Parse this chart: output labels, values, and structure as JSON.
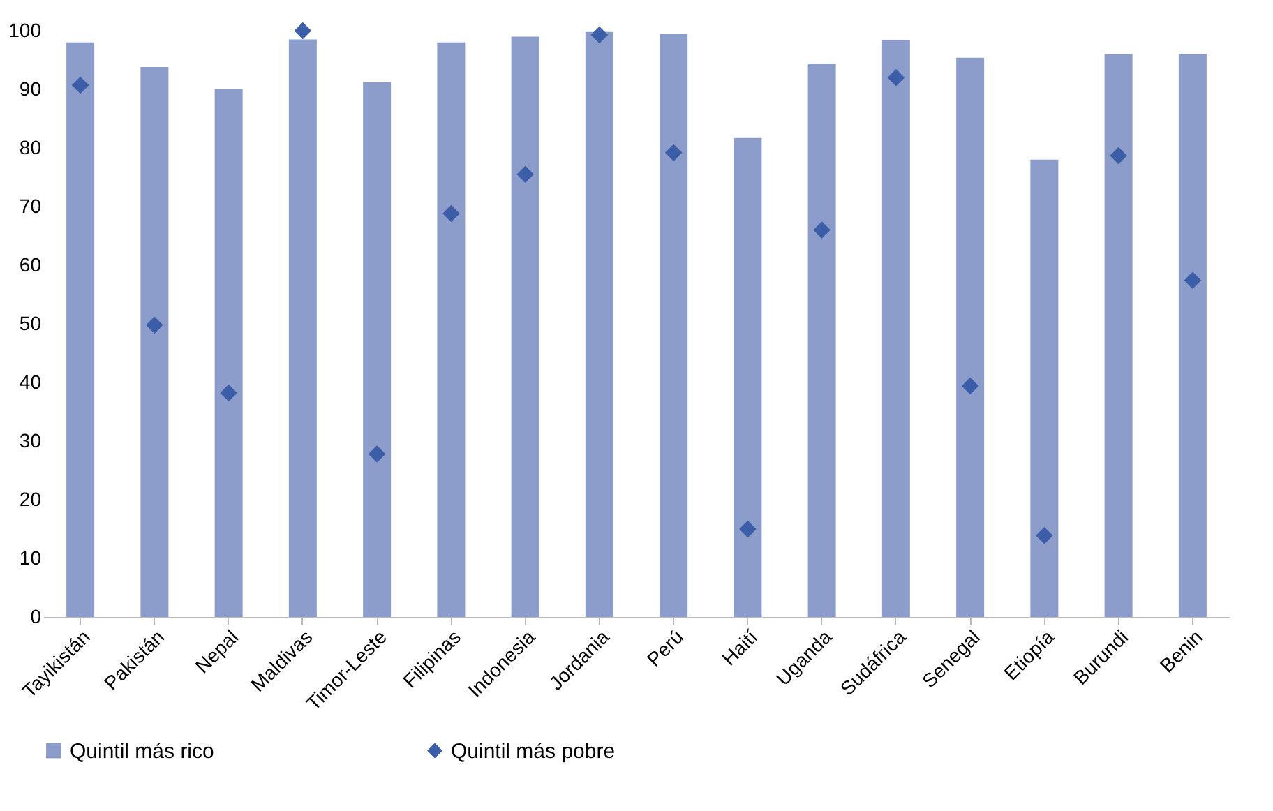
{
  "chart_data": {
    "type": "bar",
    "categories": [
      "Tayikistán",
      "Pakistán",
      "Nepal",
      "Maldivas",
      "Timor-Leste",
      "Filipinas",
      "Indonesia",
      "Jordania",
      "Perú",
      "Haití",
      "Uganda",
      "Sudáfrica",
      "Senegal",
      "Etiopía",
      "Burundi",
      "Benin"
    ],
    "series": [
      {
        "name": "Quintil más rico",
        "color": "#8c9dcc",
        "values": [
          98,
          93.8,
          90,
          98.5,
          91.2,
          98,
          99,
          99.8,
          99.5,
          81.7,
          94.4,
          98.4,
          95.4,
          78,
          96,
          96
        ]
      },
      {
        "name": "Quintil más pobre",
        "type": "scatter",
        "marker": "diamond",
        "color": "#3c5ea8",
        "values": [
          90.7,
          49.8,
          38.2,
          100,
          27.8,
          68.8,
          75.5,
          99.3,
          79.2,
          15,
          66,
          92,
          39.4,
          13.9,
          78.7,
          57.4
        ]
      }
    ],
    "ylim": [
      0,
      100
    ],
    "yticks": [
      0,
      10,
      20,
      30,
      40,
      50,
      60,
      70,
      80,
      90,
      100
    ],
    "grid": false,
    "legend": "bottom"
  }
}
